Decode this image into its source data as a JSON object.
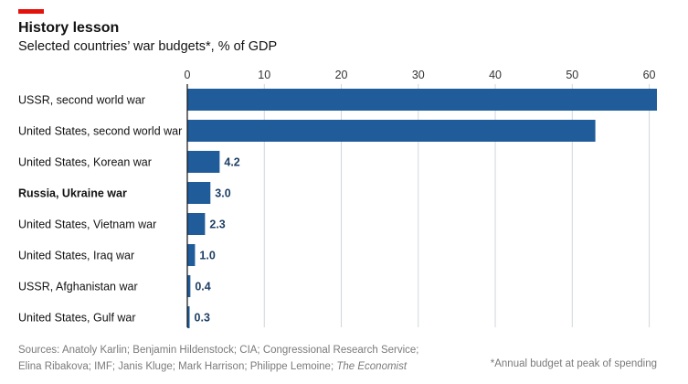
{
  "header": {
    "title": "History lesson",
    "subtitle": "Selected countries’ war budgets*, % of GDP"
  },
  "colors": {
    "accent": "#e3120b",
    "bar": "#1f5c99",
    "gridline": "#d0d6dc",
    "value_label": "#1f3f66",
    "category_label": "#121212",
    "tick_label": "#333333"
  },
  "chart_data": {
    "type": "bar",
    "orientation": "horizontal",
    "title": "History lesson",
    "subtitle": "Selected countries’ war budgets*, % of GDP",
    "categories": [
      "USSR, second world war",
      "United States, second world war",
      "United States, Korean war",
      "Russia, Ukraine war",
      "United States, Vietnam war",
      "United States, Iraq war",
      "USSR, Afghanistan war",
      "United States, Gulf war"
    ],
    "highlighted_category": "Russia, Ukraine war",
    "values": [
      61,
      53,
      4.2,
      3.0,
      2.3,
      1.0,
      0.4,
      0.3
    ],
    "value_labels": [
      "",
      "",
      "4.2",
      "3.0",
      "2.3",
      "1.0",
      "0.4",
      "0.3"
    ],
    "xlim": [
      0,
      61
    ],
    "xticks": [
      0,
      10,
      20,
      30,
      40,
      50,
      60
    ],
    "xtick_labels": [
      "0",
      "10",
      "20",
      "30",
      "40",
      "50",
      "60"
    ],
    "xtick_position": "top",
    "grid": true,
    "legend": "none"
  },
  "footer": {
    "sources_line1": "Sources: Anatoly Karlin; Benjamin Hildenstock; CIA; Congressional Research Service;",
    "sources_line2": "Elina Ribakova; IMF; Janis Kluge; Mark Harrison; Philippe Lemoine; ",
    "sources_publication": "The Economist",
    "footnote": "*Annual budget at peak of spending"
  }
}
